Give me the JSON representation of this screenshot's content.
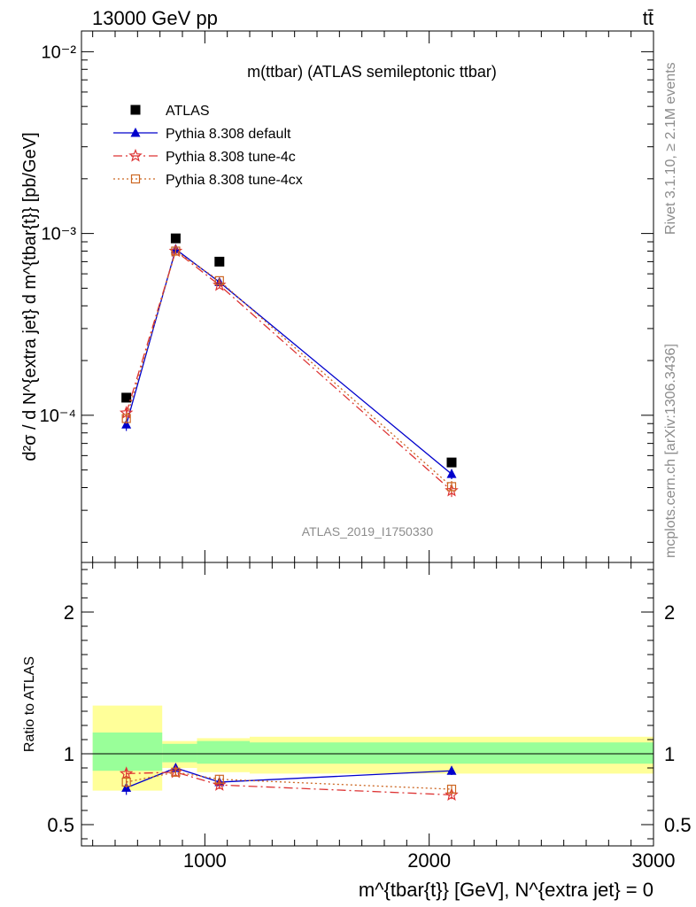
{
  "header": {
    "left": "13000 GeV pp",
    "right": "tt̄"
  },
  "side_labels": {
    "rivet": "Rivet 3.1.10, ≥ 2.1M events",
    "mcplots": "mcplots.cern.ch [arXiv:1306.3436]"
  },
  "main_title": "m(ttbar) (ATLAS semileptonic ttbar)",
  "analysis_id": "ATLAS_2019_I1750330",
  "chart_data": [
    {
      "type": "scatter",
      "title": "m(ttbar) (ATLAS semileptonic ttbar)",
      "ylabel": "d²σ / d N^{extra jet} d m^{tbar{t}} [pb/GeV]",
      "yscale": "log",
      "ylim": [
        1.55e-05,
        0.013
      ],
      "xlim": [
        450,
        3000
      ],
      "y_tick_labels": [
        "10⁻⁴",
        "10⁻³",
        "10⁻²"
      ],
      "legend_position": "top-left",
      "series": [
        {
          "name": "ATLAS",
          "color": "#000000",
          "marker": "square",
          "x": [
            650,
            870,
            1065,
            2100
          ],
          "y": [
            0.000125,
            0.00094,
            0.0007,
            5.5e-05
          ]
        },
        {
          "name": "Pythia 8.308 default",
          "color": "#0000cc",
          "marker": "triangle",
          "line": "solid",
          "x": [
            650,
            870,
            1065,
            2100
          ],
          "y": [
            8.9e-05,
            0.00082,
            0.00054,
            4.75e-05
          ],
          "err": [
            7e-06,
            3e-05,
            2e-05,
            3e-06
          ]
        },
        {
          "name": "Pythia 8.308 tune-4c",
          "color": "#dd3333",
          "marker": "star",
          "line": "dashdot",
          "x": [
            650,
            870,
            1065,
            2100
          ],
          "y": [
            0.000103,
            0.0008,
            0.00052,
            3.85e-05
          ],
          "err": [
            7e-06,
            3e-05,
            2e-05,
            3e-06
          ]
        },
        {
          "name": "Pythia 8.308 tune-4cx",
          "color": "#cc6622",
          "marker": "open-square",
          "line": "dotted",
          "x": [
            650,
            870,
            1065,
            2100
          ],
          "y": [
            9.6e-05,
            0.0008,
            0.00055,
            4.05e-05
          ],
          "err": [
            6e-06,
            3e-05,
            2e-05,
            3e-06
          ]
        }
      ]
    },
    {
      "type": "scatter",
      "ylabel": "Ratio to ATLAS",
      "xlabel": "m^{tbar{t}} [GeV], N^{extra jet} = 0",
      "ylim": [
        0.35,
        2.35
      ],
      "xlim": [
        450,
        3000
      ],
      "y_ticks": [
        0.5,
        1,
        2
      ],
      "y_tick_labels": [
        "0.5",
        "1",
        "2"
      ],
      "x_ticks": [
        1000,
        2000,
        3000
      ],
      "x_tick_labels": [
        "1000",
        "2000",
        "3000"
      ],
      "bands": [
        {
          "x0": 500,
          "x1": 810,
          "yellow": [
            0.74,
            1.34
          ],
          "green": [
            0.88,
            1.15
          ]
        },
        {
          "x0": 810,
          "x1": 965,
          "yellow": [
            0.9,
            1.09
          ],
          "green": [
            0.94,
            1.07
          ]
        },
        {
          "x0": 965,
          "x1": 1200,
          "yellow": [
            0.87,
            1.11
          ],
          "green": [
            0.93,
            1.09
          ]
        },
        {
          "x0": 1200,
          "x1": 3000,
          "yellow": [
            0.86,
            1.12
          ],
          "green": [
            0.93,
            1.08
          ]
        }
      ],
      "series": [
        {
          "name": "Pythia 8.308 default",
          "color": "#0000cc",
          "marker": "triangle",
          "line": "solid",
          "x": [
            650,
            870,
            1065,
            2100
          ],
          "y": [
            0.76,
            0.9,
            0.8,
            0.88
          ],
          "err": [
            0.05,
            0.03,
            0.03,
            0.03
          ]
        },
        {
          "name": "Pythia 8.308 tune-4c",
          "color": "#dd3333",
          "marker": "star",
          "line": "dashdot",
          "x": [
            650,
            870,
            1065,
            2100
          ],
          "y": [
            0.86,
            0.87,
            0.78,
            0.71
          ],
          "err": [
            0.04,
            0.03,
            0.03,
            0.03
          ]
        },
        {
          "name": "Pythia 8.308 tune-4cx",
          "color": "#cc6622",
          "marker": "open-square",
          "line": "dotted",
          "x": [
            650,
            870,
            1065,
            2100
          ],
          "y": [
            0.8,
            0.87,
            0.82,
            0.75
          ],
          "err": [
            0.04,
            0.03,
            0.03,
            0.03
          ]
        }
      ]
    }
  ]
}
